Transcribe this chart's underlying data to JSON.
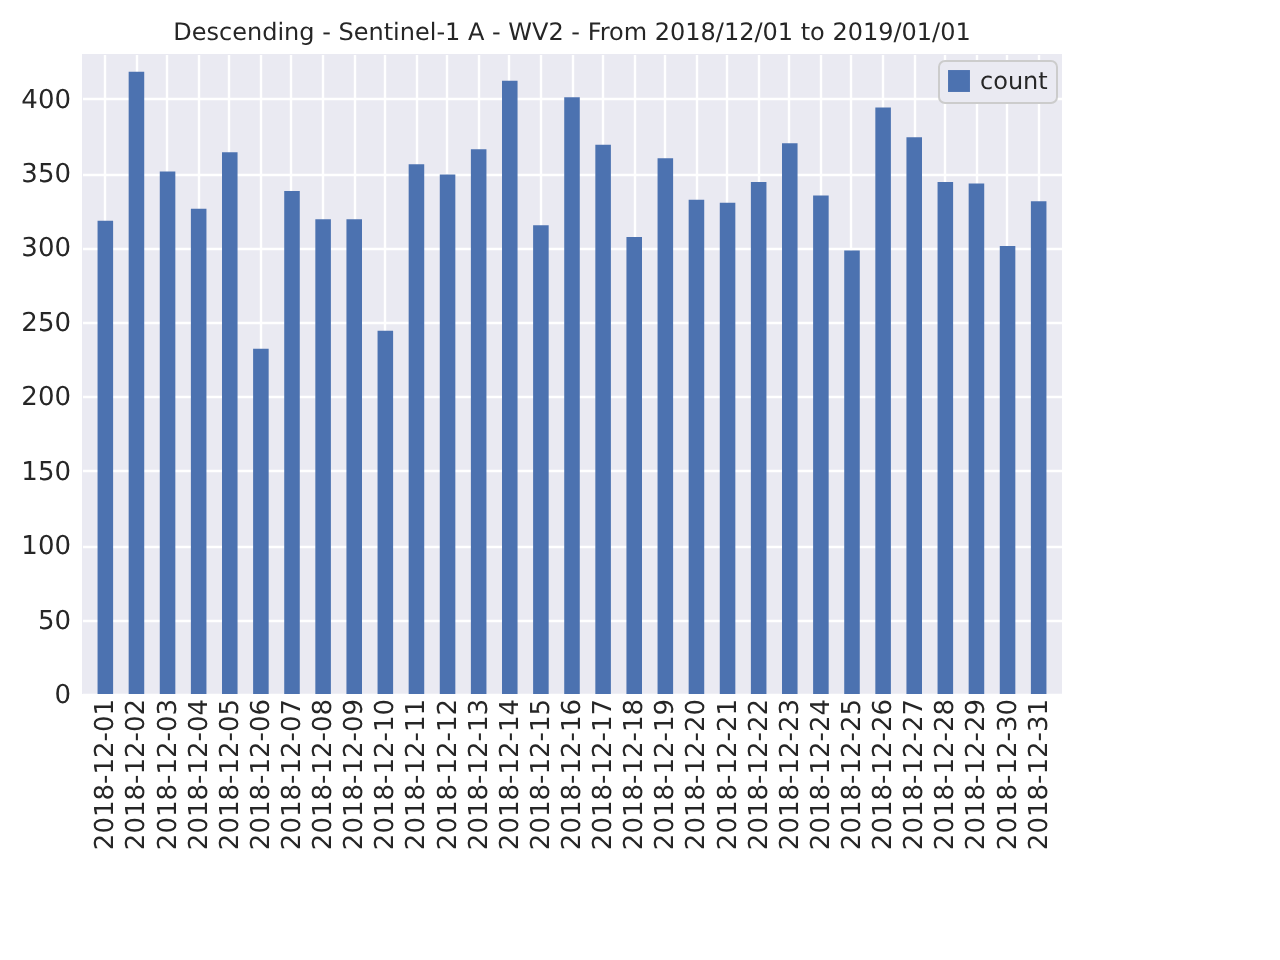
{
  "chart_data": {
    "type": "bar",
    "title": "Descending - Sentinel-1 A - WV2 - From 2018/12/01 to 2019/01/01",
    "categories": [
      "2018-12-01",
      "2018-12-02",
      "2018-12-03",
      "2018-12-04",
      "2018-12-05",
      "2018-12-06",
      "2018-12-07",
      "2018-12-08",
      "2018-12-09",
      "2018-12-10",
      "2018-12-11",
      "2018-12-12",
      "2018-12-13",
      "2018-12-14",
      "2018-12-15",
      "2018-12-16",
      "2018-12-17",
      "2018-12-18",
      "2018-12-19",
      "2018-12-20",
      "2018-12-21",
      "2018-12-22",
      "2018-12-23",
      "2018-12-24",
      "2018-12-25",
      "2018-12-26",
      "2018-12-27",
      "2018-12-28",
      "2018-12-29",
      "2018-12-30",
      "2018-12-31"
    ],
    "series": [
      {
        "name": "count",
        "color": "#4c72b0",
        "values": [
          318,
          418,
          351,
          326,
          364,
          232,
          338,
          319,
          319,
          244,
          356,
          349,
          366,
          412,
          315,
          401,
          369,
          307,
          360,
          332,
          330,
          344,
          370,
          335,
          298,
          394,
          374,
          344,
          343,
          301,
          331
        ]
      }
    ],
    "ylim": [
      0,
      430
    ],
    "yticks": [
      0,
      50,
      100,
      150,
      200,
      250,
      300,
      350,
      400
    ],
    "grid": true,
    "legend": "top right"
  }
}
